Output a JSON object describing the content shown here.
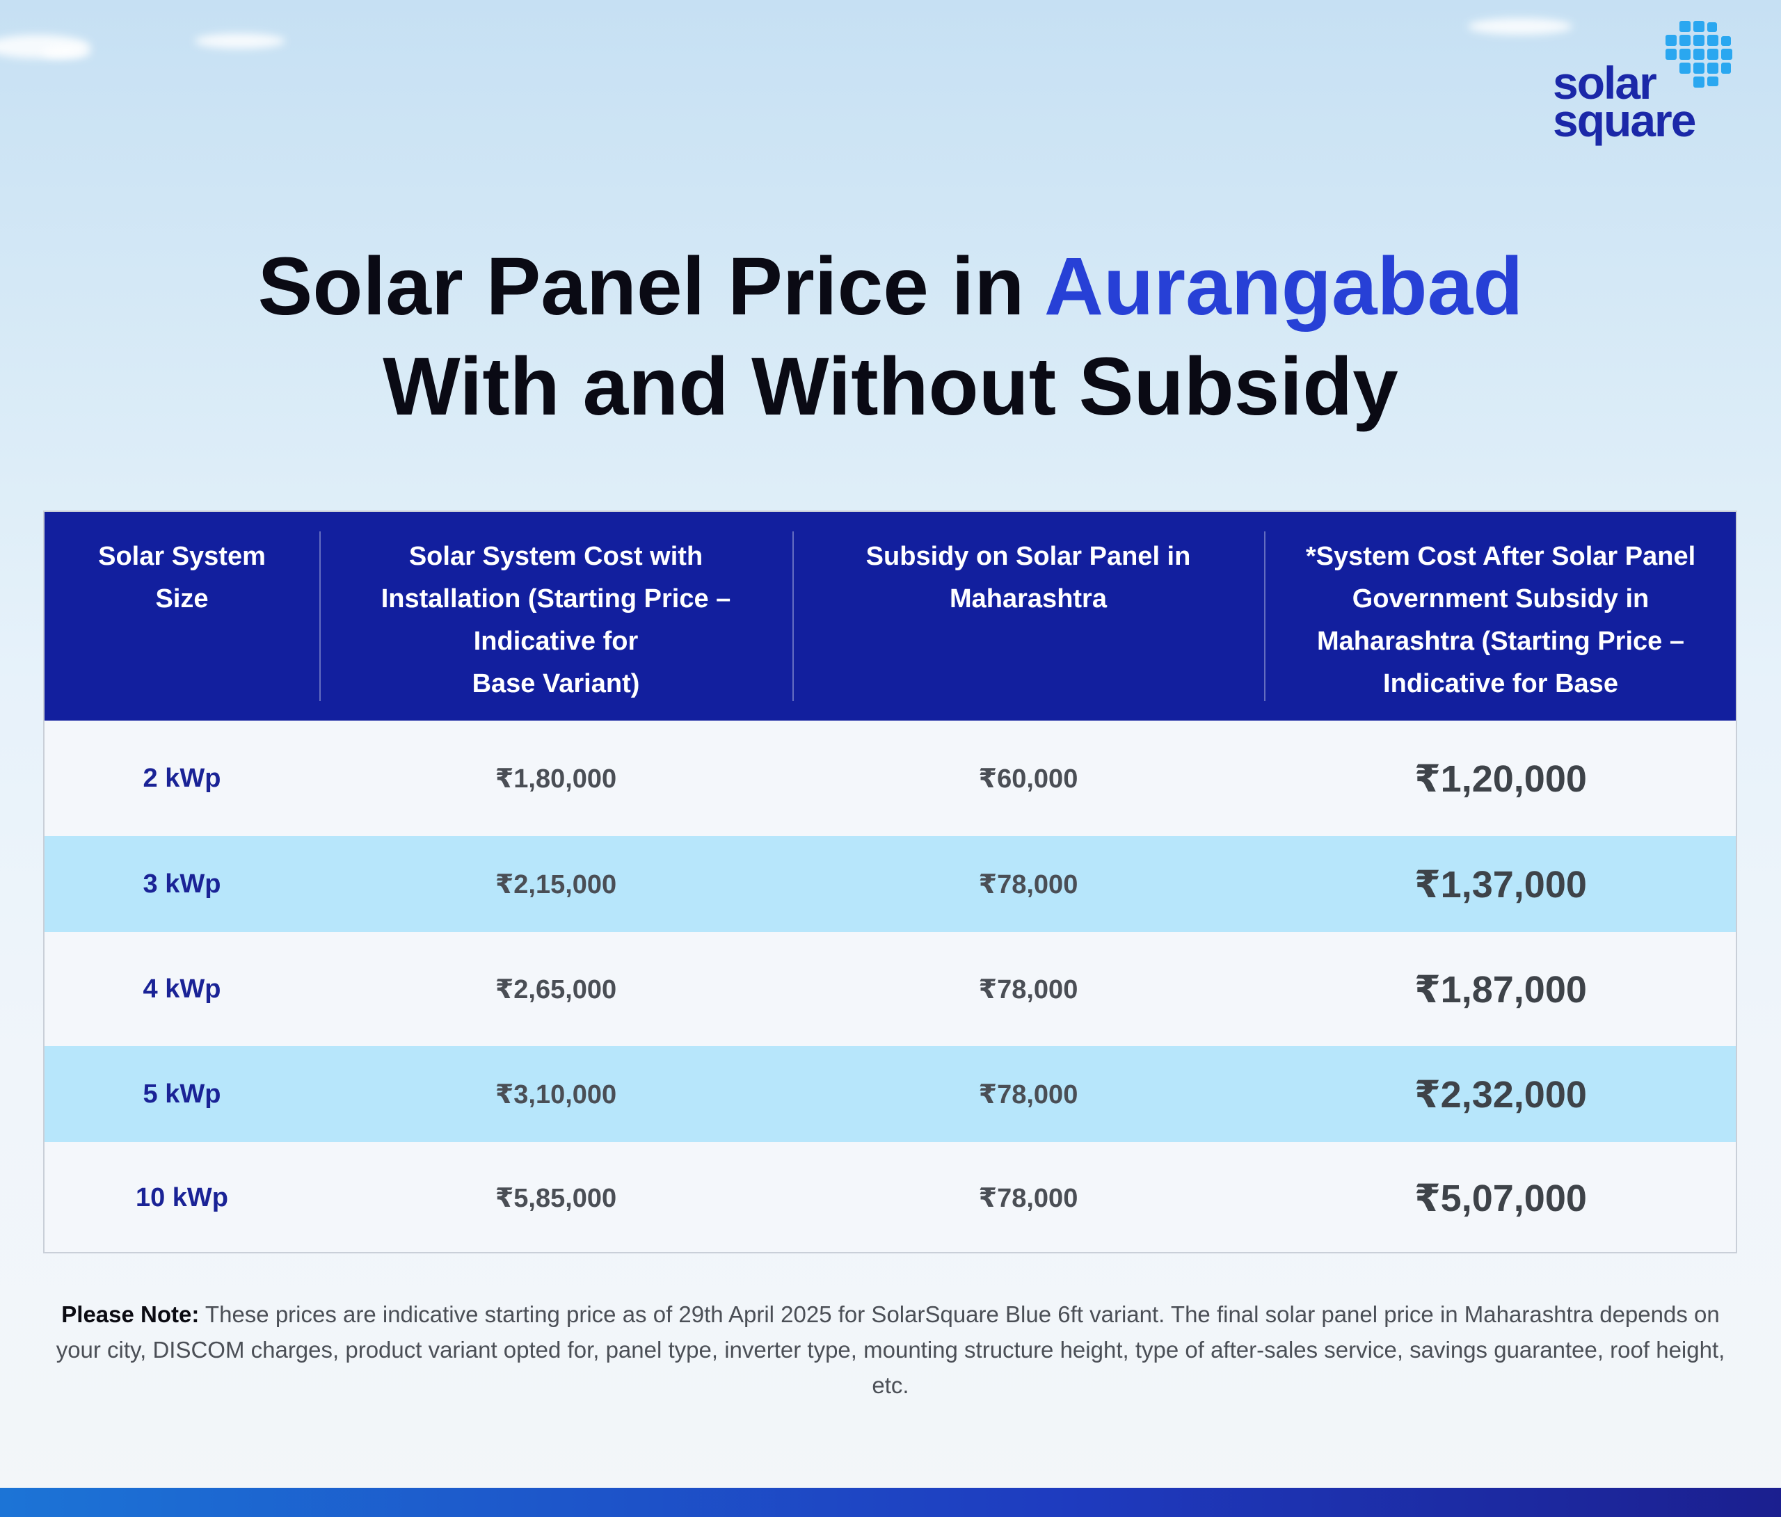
{
  "brand": {
    "logo_line1": "solar",
    "logo_line2": "square"
  },
  "title": {
    "line1_prefix": "Solar Panel Price in ",
    "line1_accent": "Aurangabad",
    "line2": "With and Without Subsidy"
  },
  "table": {
    "headers": [
      "Solar System\nSize",
      "Solar System Cost with\nInstallation (Starting Price –\nIndicative for\nBase Variant)",
      "Subsidy on Solar Panel in\nMaharashtra",
      "*System Cost After Solar Panel\nGovernment Subsidy in\nMaharashtra (Starting Price –\nIndicative for Base"
    ],
    "rows": [
      {
        "size": "2 kWp",
        "cost": "₹1,80,000",
        "subsidy": "₹60,000",
        "after": "₹1,20,000"
      },
      {
        "size": "3 kWp",
        "cost": "₹2,15,000",
        "subsidy": "₹78,000",
        "after": "₹1,37,000"
      },
      {
        "size": "4 kWp",
        "cost": "₹2,65,000",
        "subsidy": "₹78,000",
        "after": "₹1,87,000"
      },
      {
        "size": "5 kWp",
        "cost": "₹3,10,000",
        "subsidy": "₹78,000",
        "after": "₹2,32,000"
      },
      {
        "size": "10 kWp",
        "cost": "₹5,85,000",
        "subsidy": "₹78,000",
        "after": "₹5,07,000"
      }
    ]
  },
  "note": {
    "label": "Please Note:",
    "text": " These prices are indicative starting price as of 29th April 2025 for SolarSquare Blue 6ft variant. The final solar panel price in Maharashtra depends on your city, DISCOM charges, product variant opted for, panel type, inverter type, mounting structure height, type of after-sales service, savings guarantee, roof height, etc."
  },
  "colors": {
    "header_bg": "#121f9e",
    "accent": "#2740d6",
    "row_alt": "#b7e6fb",
    "brand": "#1b28a8"
  }
}
